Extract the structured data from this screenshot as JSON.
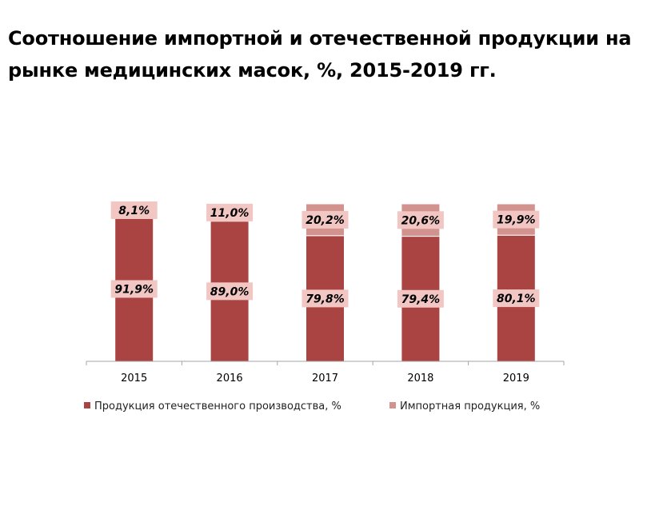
{
  "title": "Соотношение импортной и отечественной продукции на рынке медицинских масок, %, 2015-2019 гг.",
  "chart_data": {
    "type": "bar",
    "stacked": true,
    "normalized": true,
    "categories": [
      "2015",
      "2016",
      "2017",
      "2018",
      "2019"
    ],
    "series": [
      {
        "name": "Продукция отечественного производства, %",
        "values": [
          91.9,
          89.0,
          79.8,
          79.4,
          80.1
        ],
        "labels": [
          "91,9%",
          "89,0%",
          "79,8%",
          "79,4%",
          "80,1%"
        ],
        "color": "#a94442"
      },
      {
        "name": "Импортная продукция, %",
        "values": [
          8.1,
          11.0,
          20.2,
          20.6,
          19.9
        ],
        "labels": [
          "8,1%",
          "11,0%",
          "20,2%",
          "20,6%",
          "19,9%"
        ],
        "color": "#d2938f"
      }
    ],
    "ylim": [
      0,
      100
    ],
    "grid": false,
    "legend_position": "bottom",
    "label_box_color": "#f1c6c3"
  }
}
